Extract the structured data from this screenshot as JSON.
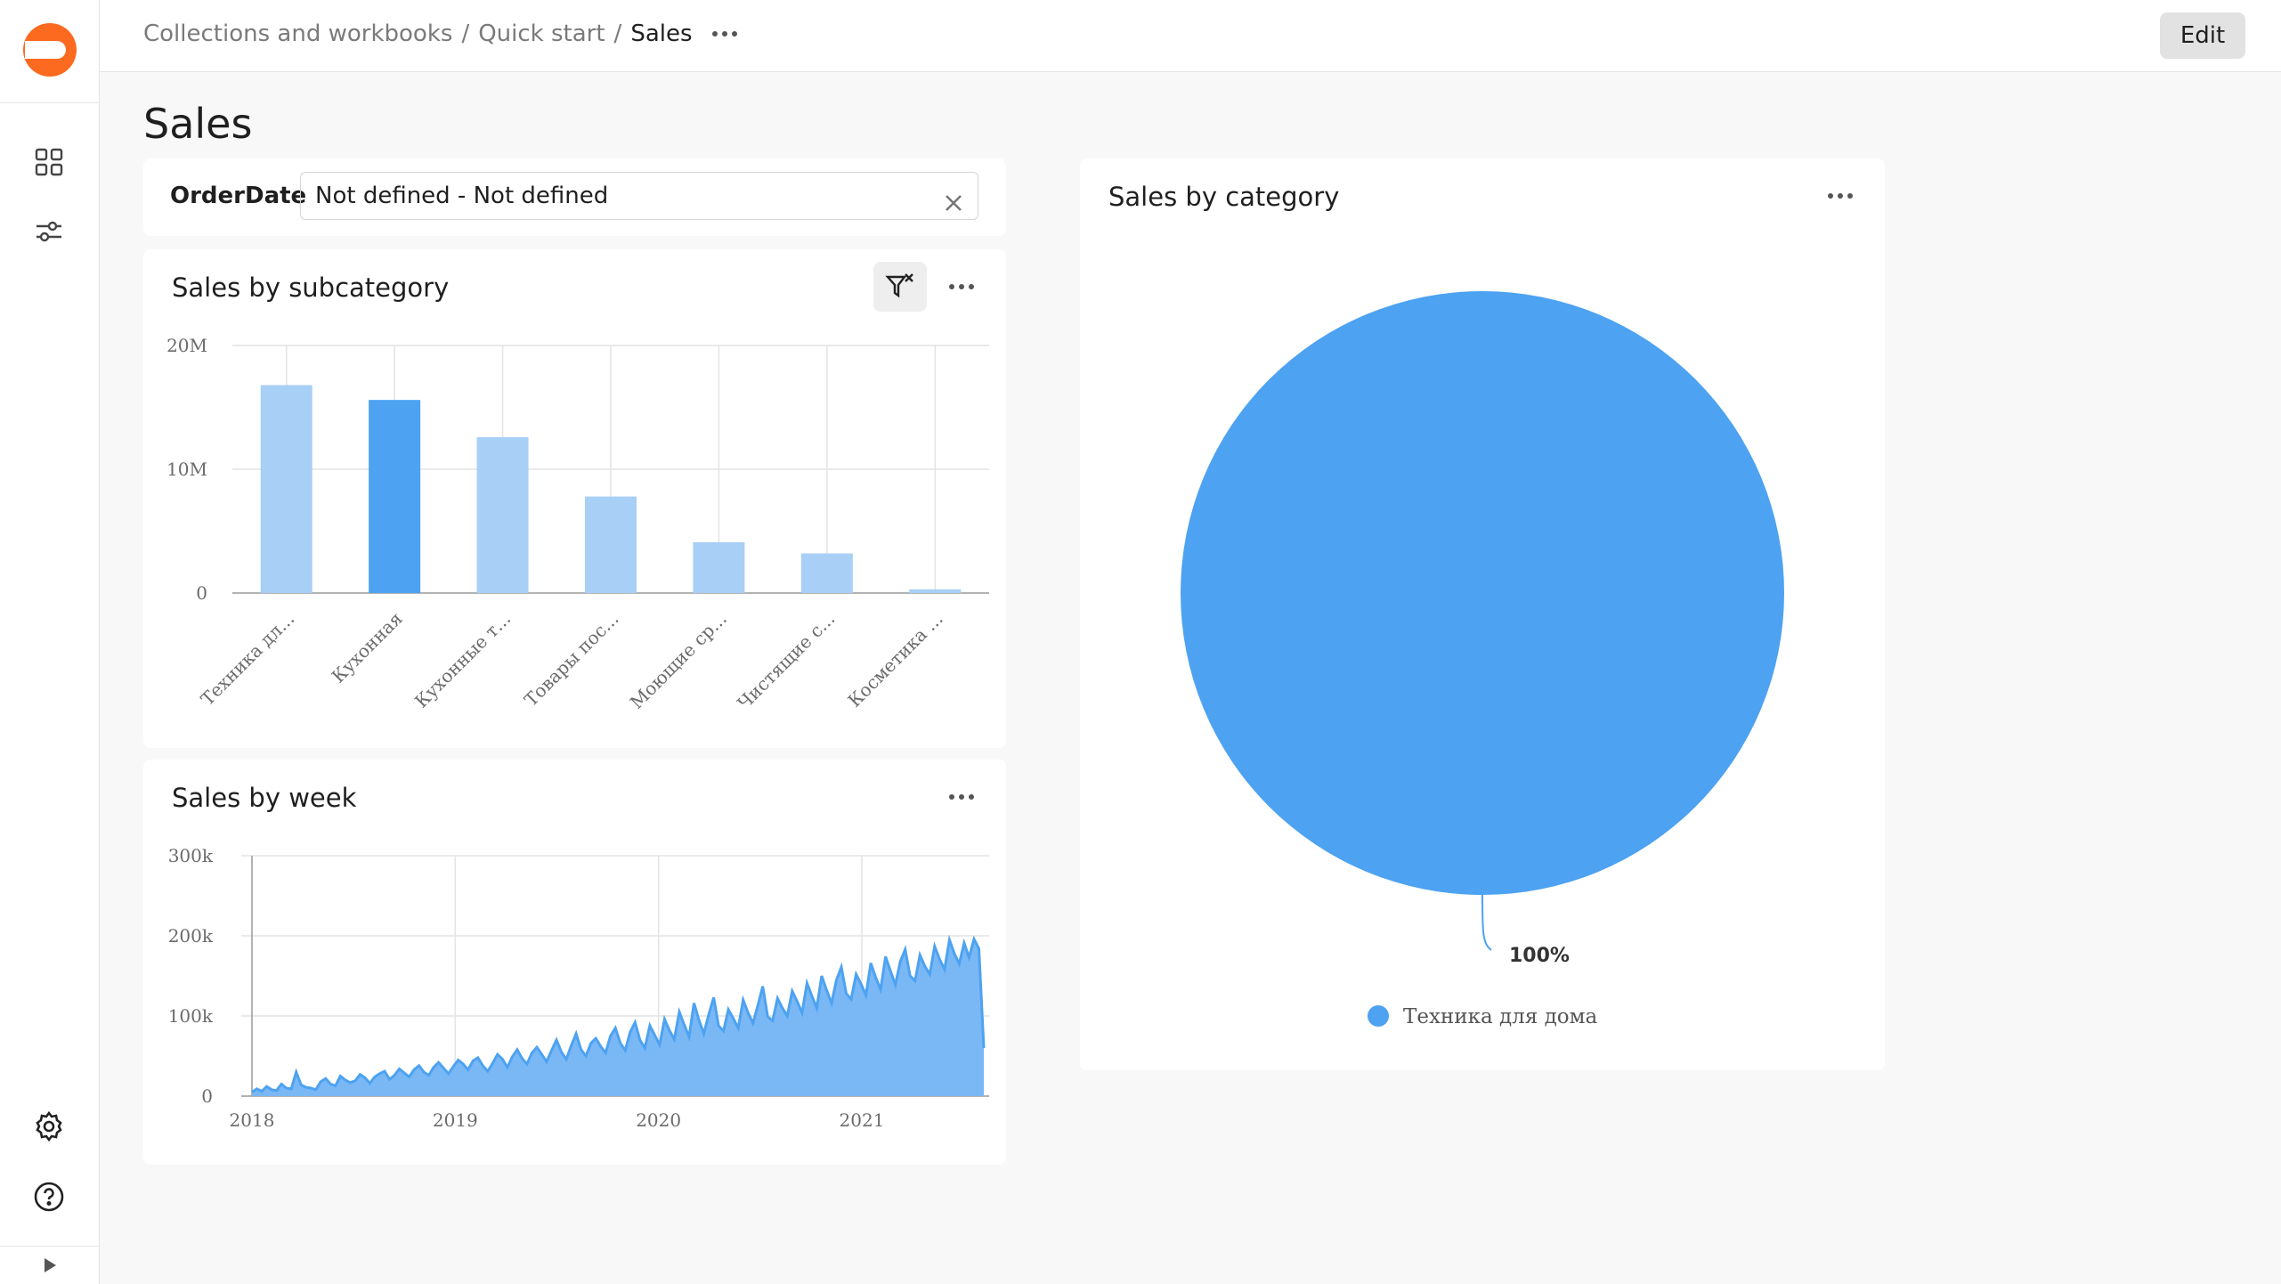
{
  "header": {
    "breadcrumb": [
      "Collections and workbooks",
      "Quick start"
    ],
    "current": "Sales",
    "edit_label": "Edit"
  },
  "page": {
    "title": "Sales"
  },
  "filter": {
    "label": "OrderDate",
    "value": "Not defined - Not defined"
  },
  "colors": {
    "accent": "#4da2f1",
    "bar_light": "#a8cff6",
    "logo": "#fc6a1f"
  },
  "icons": [
    "dashboard-icon",
    "sliders-icon",
    "settings-gear-icon",
    "help-icon",
    "collapse-arrow-icon",
    "filter-reset-icon",
    "close-icon",
    "more-icon"
  ],
  "charts": {
    "subcategory": {
      "title": "Sales by subcategory"
    },
    "week": {
      "title": "Sales by week"
    },
    "category": {
      "title": "Sales by category"
    }
  },
  "chart_data": [
    {
      "type": "bar",
      "title": "Sales by subcategory",
      "categories": [
        "Техника дл...",
        "Кухонная",
        "Кухонные т...",
        "Товары пос...",
        "Моющие ср...",
        "Чистящие с...",
        "Косметика ..."
      ],
      "values": [
        16800000,
        15600000,
        12600000,
        7800000,
        4100000,
        3200000,
        300000
      ],
      "highlighted_index": 1,
      "ylim": [
        0,
        20000000
      ],
      "yticks": [
        "0",
        "10M",
        "20M"
      ],
      "ytick_values": [
        0,
        10000000,
        20000000
      ],
      "grid": true
    },
    {
      "type": "area",
      "title": "Sales by week",
      "x_start": "2018-01",
      "x_end": "2021-08",
      "xticks": [
        "2018",
        "2019",
        "2020",
        "2021"
      ],
      "ylim": [
        0,
        300000
      ],
      "yticks": [
        "0",
        "100k",
        "200k",
        "300k"
      ],
      "ytick_values": [
        0,
        100000,
        200000,
        300000
      ],
      "grid": true,
      "values": [
        5000,
        9000,
        6000,
        12000,
        8000,
        7000,
        15000,
        10000,
        9000,
        30000,
        14000,
        11000,
        10000,
        8000,
        18000,
        22000,
        15000,
        13000,
        25000,
        20000,
        17000,
        19000,
        27000,
        23000,
        16000,
        24000,
        28000,
        31000,
        21000,
        26000,
        34000,
        29000,
        24000,
        33000,
        38000,
        30000,
        26000,
        36000,
        42000,
        35000,
        28000,
        37000,
        45000,
        40000,
        33000,
        44000,
        48000,
        38000,
        31000,
        41000,
        52000,
        46000,
        36000,
        49000,
        58000,
        47000,
        40000,
        54000,
        61000,
        52000,
        43000,
        57000,
        70000,
        55000,
        46000,
        63000,
        78000,
        58000,
        50000,
        66000,
        72000,
        62000,
        54000,
        75000,
        85000,
        66000,
        57000,
        80000,
        92000,
        70000,
        60000,
        88000,
        76000,
        64000,
        96000,
        82000,
        71000,
        105000,
        89000,
        74000,
        116000,
        95000,
        78000,
        102000,
        123000,
        88000,
        81000,
        108000,
        97000,
        85000,
        120000,
        104000,
        91000,
        113000,
        137000,
        99000,
        94000,
        122000,
        110000,
        100000,
        131000,
        118000,
        104000,
        141000,
        125000,
        110000,
        150000,
        132000,
        116000,
        145000,
        161000,
        128000,
        121000,
        152000,
        140000,
        126000,
        166000,
        148000,
        133000,
        174000,
        156000,
        139000,
        168000,
        183000,
        150000,
        144000,
        176000,
        162000,
        152000,
        187000,
        171000,
        158000,
        195000,
        178000,
        165000,
        191000,
        173000,
        196000,
        184000,
        60000
      ]
    },
    {
      "type": "pie",
      "title": "Sales by category",
      "labels": [
        "Техника для дома"
      ],
      "values": [
        100
      ],
      "value_labels": [
        "100%"
      ],
      "legend": "bottom"
    }
  ]
}
